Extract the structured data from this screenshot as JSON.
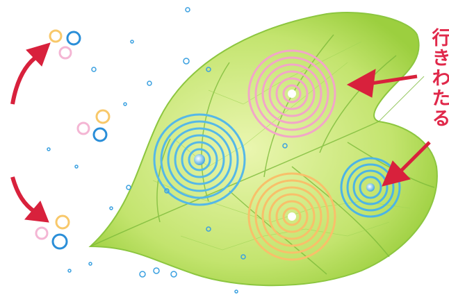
{
  "labels": {
    "right": "行きわたる"
  }
}
